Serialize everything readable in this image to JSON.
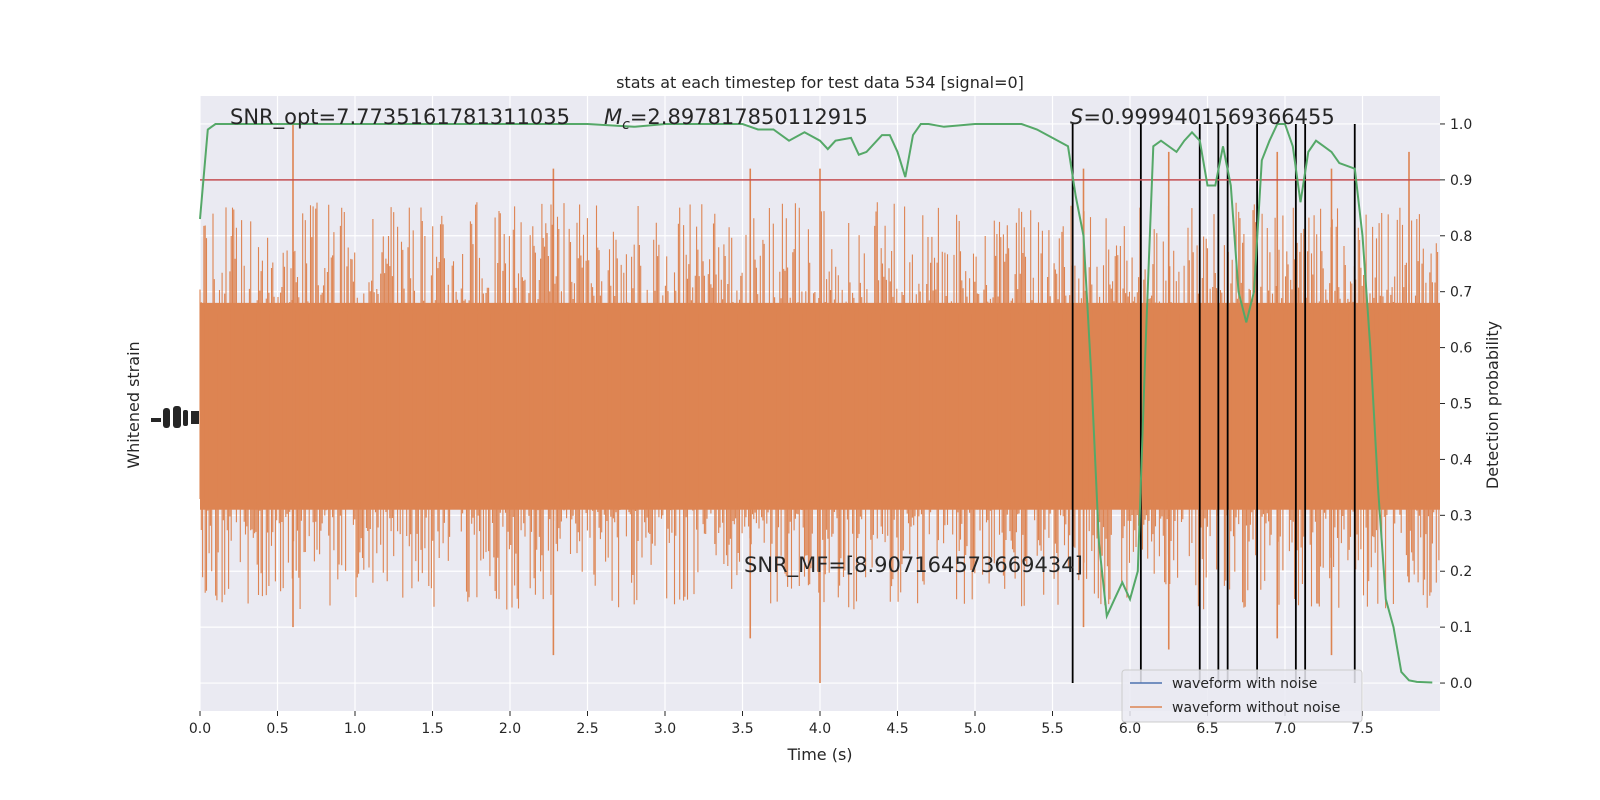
{
  "chart_data": {
    "type": "line",
    "title": "stats at each timestep for test data 534 [signal=0]",
    "xlabel": "Time (s)",
    "ylabel_left": "Whitened strain",
    "ylabel_right": "Detection probability",
    "xlim": [
      0.0,
      8.0
    ],
    "ylim_right": [
      -0.05,
      1.05
    ],
    "x_ticks": [
      "0.0",
      "0.5",
      "1.0",
      "1.5",
      "2.0",
      "2.5",
      "3.0",
      "3.5",
      "4.0",
      "4.5",
      "5.0",
      "5.5",
      "6.0",
      "6.5",
      "7.0",
      "7.5"
    ],
    "y_ticks_right": [
      "0.0",
      "0.1",
      "0.2",
      "0.3",
      "0.4",
      "0.5",
      "0.6",
      "0.7",
      "0.8",
      "0.9",
      "1.0"
    ],
    "annotations": {
      "snr_opt": "SNR_opt=7.7735161781311035",
      "mc_symbol": "M",
      "mc_sub": "c",
      "mc_value": "=2.897817850112915",
      "s_symbol": "S",
      "s_value": "=0.9999401569366455",
      "snr_mf": "SNR_MF=[8.907164573669434]"
    },
    "legend": {
      "position": "lower-right",
      "entries": [
        {
          "label": "waveform with noise",
          "color": "#4c72b0"
        },
        {
          "label": "waveform without noise",
          "color": "#dd8452"
        }
      ]
    },
    "threshold": {
      "y": 0.9,
      "color": "#c44e52"
    },
    "probability_color": "#55a868",
    "detection_lines_x": [
      5.63,
      6.07,
      6.45,
      6.57,
      6.63,
      6.82,
      7.07,
      7.13,
      7.45
    ],
    "detection_probability": {
      "x": [
        0.0,
        0.05,
        0.1,
        0.2,
        0.5,
        1.0,
        1.5,
        2.0,
        2.5,
        2.8,
        3.0,
        3.2,
        3.5,
        3.6,
        3.7,
        3.8,
        3.9,
        4.0,
        4.05,
        4.1,
        4.2,
        4.25,
        4.3,
        4.4,
        4.45,
        4.5,
        4.55,
        4.6,
        4.65,
        4.7,
        4.8,
        5.0,
        5.2,
        5.3,
        5.4,
        5.5,
        5.6,
        5.65,
        5.7,
        5.75,
        5.8,
        5.85,
        5.9,
        5.95,
        6.0,
        6.05,
        6.1,
        6.15,
        6.2,
        6.3,
        6.35,
        6.4,
        6.45,
        6.5,
        6.55,
        6.6,
        6.65,
        6.7,
        6.75,
        6.8,
        6.85,
        6.9,
        6.95,
        7.0,
        7.05,
        7.1,
        7.15,
        7.2,
        7.25,
        7.3,
        7.35,
        7.45,
        7.5,
        7.55,
        7.6,
        7.65,
        7.7,
        7.75,
        7.8,
        7.85,
        7.95
      ],
      "y": [
        0.83,
        0.99,
        1.0,
        1.0,
        1.0,
        1.0,
        1.0,
        1.0,
        1.0,
        0.995,
        1.0,
        1.0,
        1.0,
        0.99,
        0.99,
        0.97,
        0.985,
        0.97,
        0.955,
        0.97,
        0.975,
        0.945,
        0.95,
        0.98,
        0.98,
        0.95,
        0.905,
        0.98,
        1.0,
        1.0,
        0.995,
        1.0,
        1.0,
        1.0,
        0.99,
        0.975,
        0.96,
        0.87,
        0.8,
        0.55,
        0.25,
        0.12,
        0.15,
        0.18,
        0.15,
        0.2,
        0.6,
        0.96,
        0.97,
        0.95,
        0.97,
        0.985,
        0.97,
        0.89,
        0.89,
        0.96,
        0.89,
        0.7,
        0.645,
        0.7,
        0.935,
        0.97,
        1.0,
        1.0,
        0.96,
        0.86,
        0.95,
        0.97,
        0.96,
        0.95,
        0.93,
        0.92,
        0.8,
        0.6,
        0.35,
        0.15,
        0.1,
        0.02,
        0.005,
        0.002,
        0.001
      ]
    },
    "strain_peaks": {
      "x": [
        0.6,
        2.28,
        3.55,
        4.0,
        5.7,
        6.25,
        6.95,
        7.3,
        7.8
      ],
      "top": [
        1.0,
        0.92,
        0.92,
        0.92,
        0.92,
        0.95,
        0.95,
        0.92,
        0.95
      ],
      "bottom": [
        0.1,
        0.05,
        0.08,
        0.0,
        0.1,
        0.06,
        0.08,
        0.05,
        0.18
      ]
    }
  }
}
